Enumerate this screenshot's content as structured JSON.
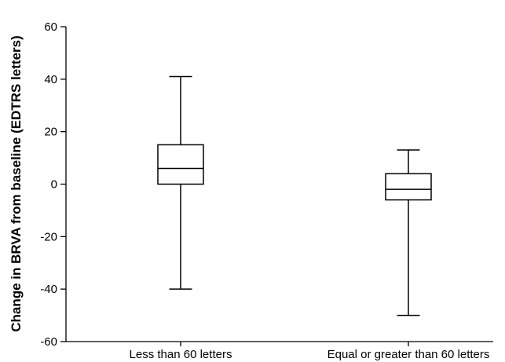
{
  "chart_data": {
    "type": "boxplot",
    "title": "",
    "xlabel": "",
    "ylabel": "Change in BRVA from baseline (EDTRS letters)",
    "ylim": [
      -60,
      60
    ],
    "yticks": [
      -60,
      -40,
      -20,
      0,
      20,
      40,
      60
    ],
    "ytick_labels": [
      "-60",
      "-40",
      "-20",
      "0",
      "20",
      "40",
      "60"
    ],
    "grid": false,
    "categories": [
      "Less than 60 letters",
      "Equal or greater than 60 letters"
    ],
    "boxes": [
      {
        "category": "Less than 60 letters",
        "min": -40,
        "q1": 0,
        "median": 6,
        "q3": 15,
        "max": 41
      },
      {
        "category": "Equal or greater than 60 letters",
        "min": -50,
        "q1": -6,
        "median": -2,
        "q3": 4,
        "max": 13
      }
    ]
  }
}
